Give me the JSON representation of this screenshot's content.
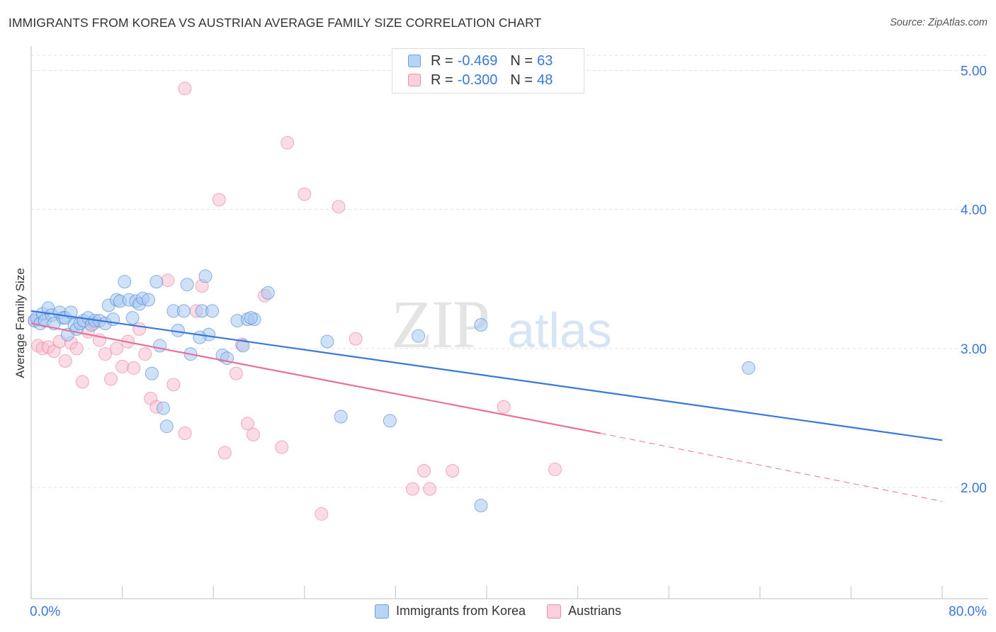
{
  "header": {
    "title": "IMMIGRANTS FROM KOREA VS AUSTRIAN AVERAGE FAMILY SIZE CORRELATION CHART",
    "source": "Source: ZipAtlas.com"
  },
  "legend": {
    "r_label": "R =",
    "n_label": "N =",
    "rows": [
      {
        "r": "-0.469",
        "n": "63",
        "color": "#a8c8f0",
        "border": "#6a9ee0"
      },
      {
        "r": "-0.300",
        "n": "48",
        "color": "#f8c0d0",
        "border": "#e890a8"
      }
    ]
  },
  "watermark": {
    "zip": "ZIP",
    "atlas": "atlas"
  },
  "colors": {
    "blue": "#3a78d8",
    "pink": "#e8709a",
    "grid": "#e0e0e0"
  },
  "chart_data": {
    "type": "scatter",
    "title": "IMMIGRANTS FROM KOREA VS AUSTRIAN AVERAGE FAMILY SIZE CORRELATION CHART",
    "xlabel": "",
    "ylabel": "Average Family Size",
    "xlim": [
      0,
      80
    ],
    "ylim": [
      1.2,
      5.15
    ],
    "x_tick_labels": [
      "0.0%",
      "80.0%"
    ],
    "y_ticks": [
      2.0,
      3.0,
      4.0,
      5.0
    ],
    "y_tick_labels": [
      "2.00",
      "3.00",
      "4.00",
      "5.00"
    ],
    "grid": true,
    "legend_position": "bottom-center",
    "series": [
      {
        "name": "Immigrants from Korea",
        "color": "#3a78d8",
        "fill": "#a8c8f0",
        "trend": {
          "x": [
            0,
            80
          ],
          "y": [
            3.27,
            2.34
          ]
        },
        "points": [
          [
            0.3,
            3.2
          ],
          [
            0.5,
            3.22
          ],
          [
            0.8,
            3.18
          ],
          [
            1.0,
            3.25
          ],
          [
            1.2,
            3.2
          ],
          [
            1.5,
            3.29
          ],
          [
            1.8,
            3.24
          ],
          [
            2.0,
            3.18
          ],
          [
            2.5,
            3.26
          ],
          [
            2.8,
            3.22
          ],
          [
            3.0,
            3.22
          ],
          [
            3.2,
            3.1
          ],
          [
            3.5,
            3.26
          ],
          [
            3.8,
            3.17
          ],
          [
            4.0,
            3.14
          ],
          [
            4.3,
            3.18
          ],
          [
            4.6,
            3.2
          ],
          [
            5.0,
            3.22
          ],
          [
            5.3,
            3.17
          ],
          [
            5.6,
            3.2
          ],
          [
            6.0,
            3.2
          ],
          [
            6.5,
            3.18
          ],
          [
            6.8,
            3.31
          ],
          [
            7.2,
            3.21
          ],
          [
            7.5,
            3.35
          ],
          [
            7.8,
            3.34
          ],
          [
            8.2,
            3.48
          ],
          [
            8.6,
            3.35
          ],
          [
            8.9,
            3.22
          ],
          [
            9.2,
            3.34
          ],
          [
            9.5,
            3.32
          ],
          [
            9.8,
            3.36
          ],
          [
            10.3,
            3.35
          ],
          [
            10.6,
            2.82
          ],
          [
            11.0,
            3.48
          ],
          [
            11.3,
            3.02
          ],
          [
            11.6,
            2.57
          ],
          [
            11.9,
            2.44
          ],
          [
            12.5,
            3.27
          ],
          [
            12.9,
            3.13
          ],
          [
            13.4,
            3.27
          ],
          [
            13.7,
            3.46
          ],
          [
            14.0,
            2.96
          ],
          [
            15.0,
            3.27
          ],
          [
            15.3,
            3.52
          ],
          [
            15.6,
            3.1
          ],
          [
            15.9,
            3.27
          ],
          [
            16.8,
            2.95
          ],
          [
            17.2,
            2.93
          ],
          [
            18.1,
            3.2
          ],
          [
            18.6,
            3.02
          ],
          [
            19.0,
            3.21
          ],
          [
            19.6,
            3.21
          ],
          [
            20.8,
            3.4
          ],
          [
            19.3,
            3.22
          ],
          [
            26.0,
            3.05
          ],
          [
            27.2,
            2.51
          ],
          [
            31.5,
            2.48
          ],
          [
            34.0,
            3.09
          ],
          [
            39.5,
            1.87
          ],
          [
            39.5,
            3.17
          ],
          [
            63.0,
            2.86
          ],
          [
            14.8,
            3.08
          ]
        ]
      },
      {
        "name": "Austrians",
        "color": "#e8709a",
        "fill": "#f8c0d0",
        "trend": {
          "x": [
            0,
            50
          ],
          "y": [
            3.18,
            2.39
          ]
        },
        "trend_dashed": {
          "x": [
            50,
            80
          ],
          "y": [
            2.39,
            1.9
          ]
        },
        "points": [
          [
            0.3,
            3.2
          ],
          [
            0.6,
            3.02
          ],
          [
            1.0,
            3.0
          ],
          [
            1.5,
            3.01
          ],
          [
            2.0,
            2.98
          ],
          [
            2.5,
            3.05
          ],
          [
            3.0,
            2.91
          ],
          [
            3.5,
            3.04
          ],
          [
            4.0,
            3.0
          ],
          [
            4.5,
            2.76
          ],
          [
            5.0,
            3.12
          ],
          [
            5.5,
            3.18
          ],
          [
            6.0,
            3.06
          ],
          [
            6.5,
            2.96
          ],
          [
            7.0,
            2.78
          ],
          [
            7.5,
            3.0
          ],
          [
            8.0,
            2.87
          ],
          [
            8.5,
            3.05
          ],
          [
            9.0,
            2.86
          ],
          [
            9.5,
            3.14
          ],
          [
            10.0,
            2.96
          ],
          [
            10.5,
            2.64
          ],
          [
            11.0,
            2.58
          ],
          [
            12.0,
            3.49
          ],
          [
            12.5,
            2.74
          ],
          [
            13.5,
            2.39
          ],
          [
            14.5,
            3.27
          ],
          [
            15.0,
            3.45
          ],
          [
            16.5,
            4.07
          ],
          [
            17.0,
            2.25
          ],
          [
            18.0,
            2.82
          ],
          [
            18.5,
            3.03
          ],
          [
            19.0,
            2.46
          ],
          [
            19.5,
            2.38
          ],
          [
            20.5,
            3.38
          ],
          [
            22.0,
            2.29
          ],
          [
            22.5,
            4.48
          ],
          [
            24.0,
            4.11
          ],
          [
            25.5,
            1.81
          ],
          [
            27.0,
            4.02
          ],
          [
            28.5,
            3.07
          ],
          [
            33.5,
            1.99
          ],
          [
            34.5,
            2.12
          ],
          [
            35.0,
            1.99
          ],
          [
            37.0,
            2.12
          ],
          [
            41.5,
            2.58
          ],
          [
            46.0,
            2.13
          ],
          [
            13.5,
            4.87
          ]
        ]
      }
    ]
  }
}
